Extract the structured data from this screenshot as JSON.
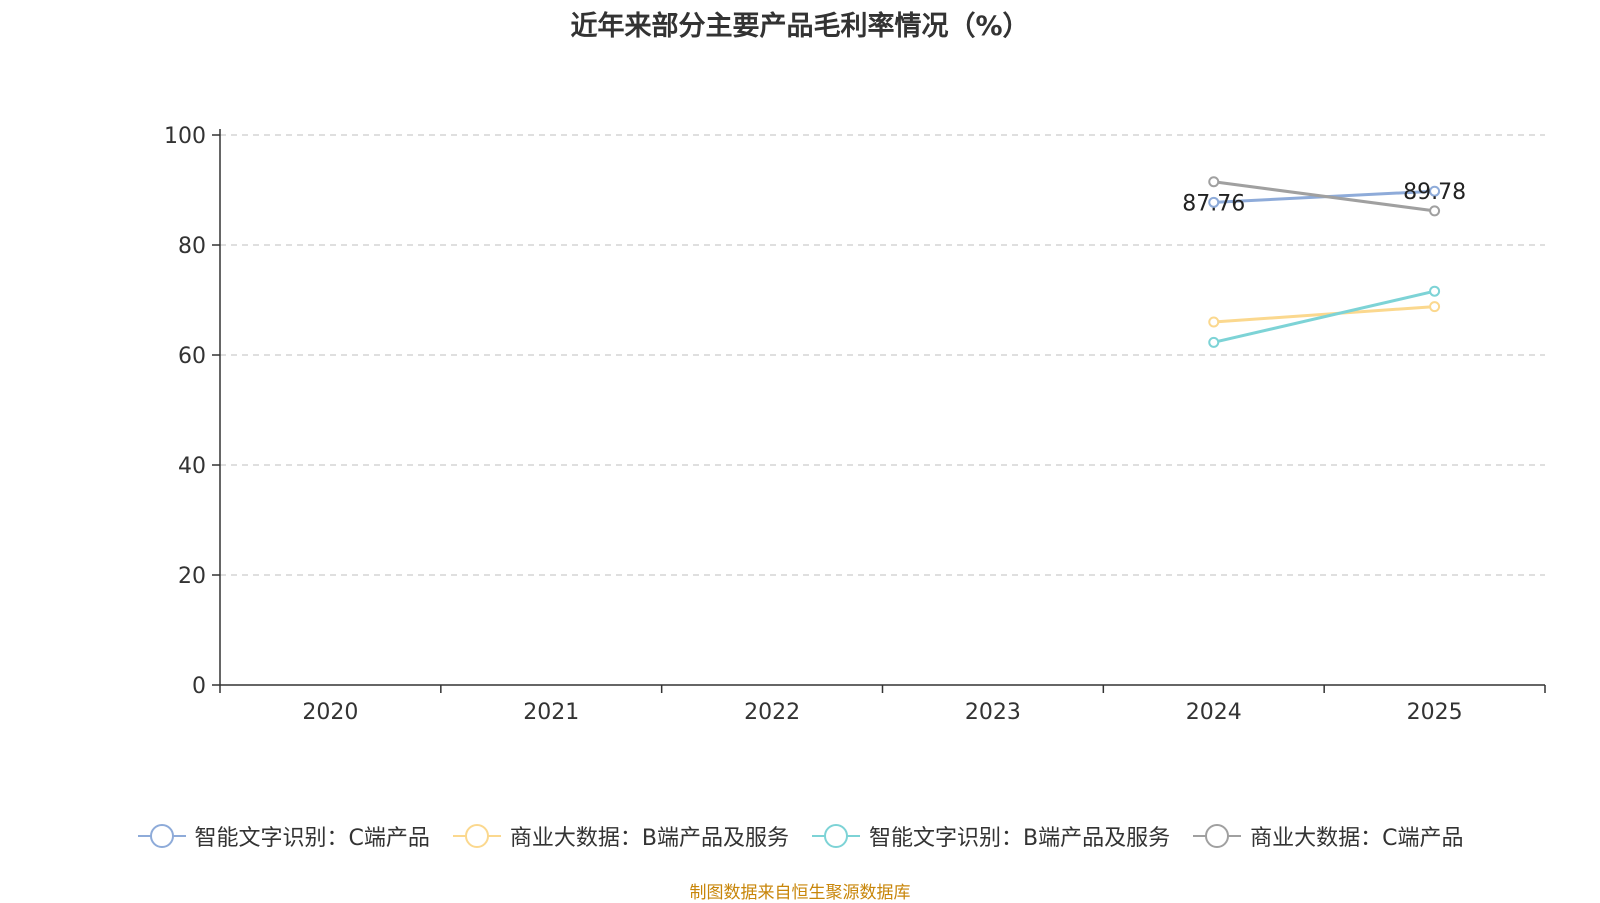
{
  "chart_data": {
    "type": "line",
    "title": "近年来部分主要产品毛利率情况（%）",
    "categories": [
      "2020",
      "2021",
      "2022",
      "2023",
      "2024",
      "2025"
    ],
    "ylim": [
      0,
      100
    ],
    "yticks": [
      0,
      20,
      40,
      60,
      80,
      100
    ],
    "grid": true,
    "legend_position": "bottom",
    "series": [
      {
        "name": "智能文字识别：C端产品",
        "color": "#8eabd9",
        "values": [
          null,
          null,
          null,
          null,
          87.76,
          89.78
        ],
        "data_labels": [
          "",
          "",
          "",
          "",
          "87.76",
          "89.78"
        ]
      },
      {
        "name": "商业大数据：B端产品及服务",
        "color": "#fbd88e",
        "values": [
          null,
          null,
          null,
          null,
          66.0,
          68.8
        ],
        "data_labels": [
          "",
          "",
          "",
          "",
          "",
          ""
        ]
      },
      {
        "name": "智能文字识别：B端产品及服务",
        "color": "#7dd3d6",
        "values": [
          null,
          null,
          null,
          null,
          62.3,
          71.6
        ],
        "data_labels": [
          "",
          "",
          "",
          "",
          "",
          ""
        ]
      },
      {
        "name": "商业大数据：C端产品",
        "color": "#a0a0a0",
        "values": [
          null,
          null,
          null,
          null,
          91.5,
          86.2
        ],
        "data_labels": [
          "",
          "",
          "",
          "",
          "",
          ""
        ]
      }
    ]
  },
  "footer": {
    "source": "制图数据来自恒生聚源数据库"
  }
}
